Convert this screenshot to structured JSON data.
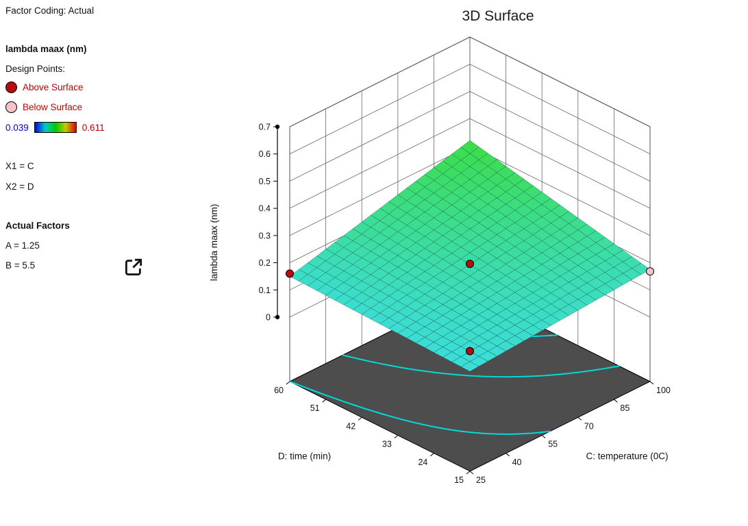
{
  "panel": {
    "factor_coding": "Factor Coding: Actual",
    "response_label": "lambda maax (nm)",
    "design_points_label": "Design Points:",
    "above_label": "Above Surface",
    "below_label": "Below Surface",
    "scale_min": "0.039",
    "scale_max": "0.611",
    "x1": "X1 = C",
    "x2": "X2 = D",
    "actual_factors_label": "Actual Factors",
    "factor_a": "A = 1.25",
    "factor_b": "B = 5.5",
    "colors": {
      "legend_text": "#c00000",
      "scale_min_text": "#0000dd",
      "scale_max_text": "#e00000"
    }
  },
  "chart_data": {
    "type": "surface3d",
    "title": "3D Surface",
    "x_axis": {
      "label": "C: temperature (0C)",
      "ticks": [
        25,
        40,
        55,
        70,
        85,
        100
      ],
      "range": [
        25,
        100
      ]
    },
    "y_axis": {
      "label": "D: time (min)",
      "ticks": [
        15,
        24,
        33,
        42,
        51,
        60
      ],
      "range": [
        15,
        60
      ]
    },
    "z_axis": {
      "label": "lambda maax (nm)",
      "ticks": [
        0,
        0.1,
        0.2,
        0.3,
        0.4,
        0.5,
        0.6,
        0.7
      ],
      "range": [
        0,
        0.7
      ]
    },
    "color_scale": {
      "min": 0.039,
      "max": 0.611,
      "gradient": [
        "#0008e0",
        "#00c8c8",
        "#00c800",
        "#c8c800",
        "#e00000"
      ]
    },
    "surface": {
      "model": "z = b0 + bu*u + bv*v + buv*u*v, u=(C-25)/75, v=(D-15)/45 (estimated from plot)",
      "coeffs": {
        "b0": 0.13,
        "bu": 0.045,
        "bv": 0.02,
        "buv": 0.125
      },
      "corner_values": {
        "C25_D15": 0.13,
        "C100_D15": 0.175,
        "C25_D60": 0.15,
        "C100_D60": 0.32
      },
      "mesh_cells": 20
    },
    "contour_levels": [
      0.15,
      0.2,
      0.25,
      0.3
    ],
    "contour_color": "#00d9d9",
    "floor_color": "#4d4d4d",
    "point_colors": {
      "above": "#b50e0e",
      "below": "#f6c2cc"
    },
    "design_points": [
      {
        "C": 25,
        "D": 60,
        "z": 0.16,
        "type": "above"
      },
      {
        "C": 62.5,
        "D": 37.5,
        "z": 0.196,
        "type": "above"
      },
      {
        "C": 25,
        "D": 15,
        "z": 0.205,
        "type": "above"
      },
      {
        "C": 100,
        "D": 15,
        "z": 0.168,
        "type": "below"
      }
    ]
  }
}
